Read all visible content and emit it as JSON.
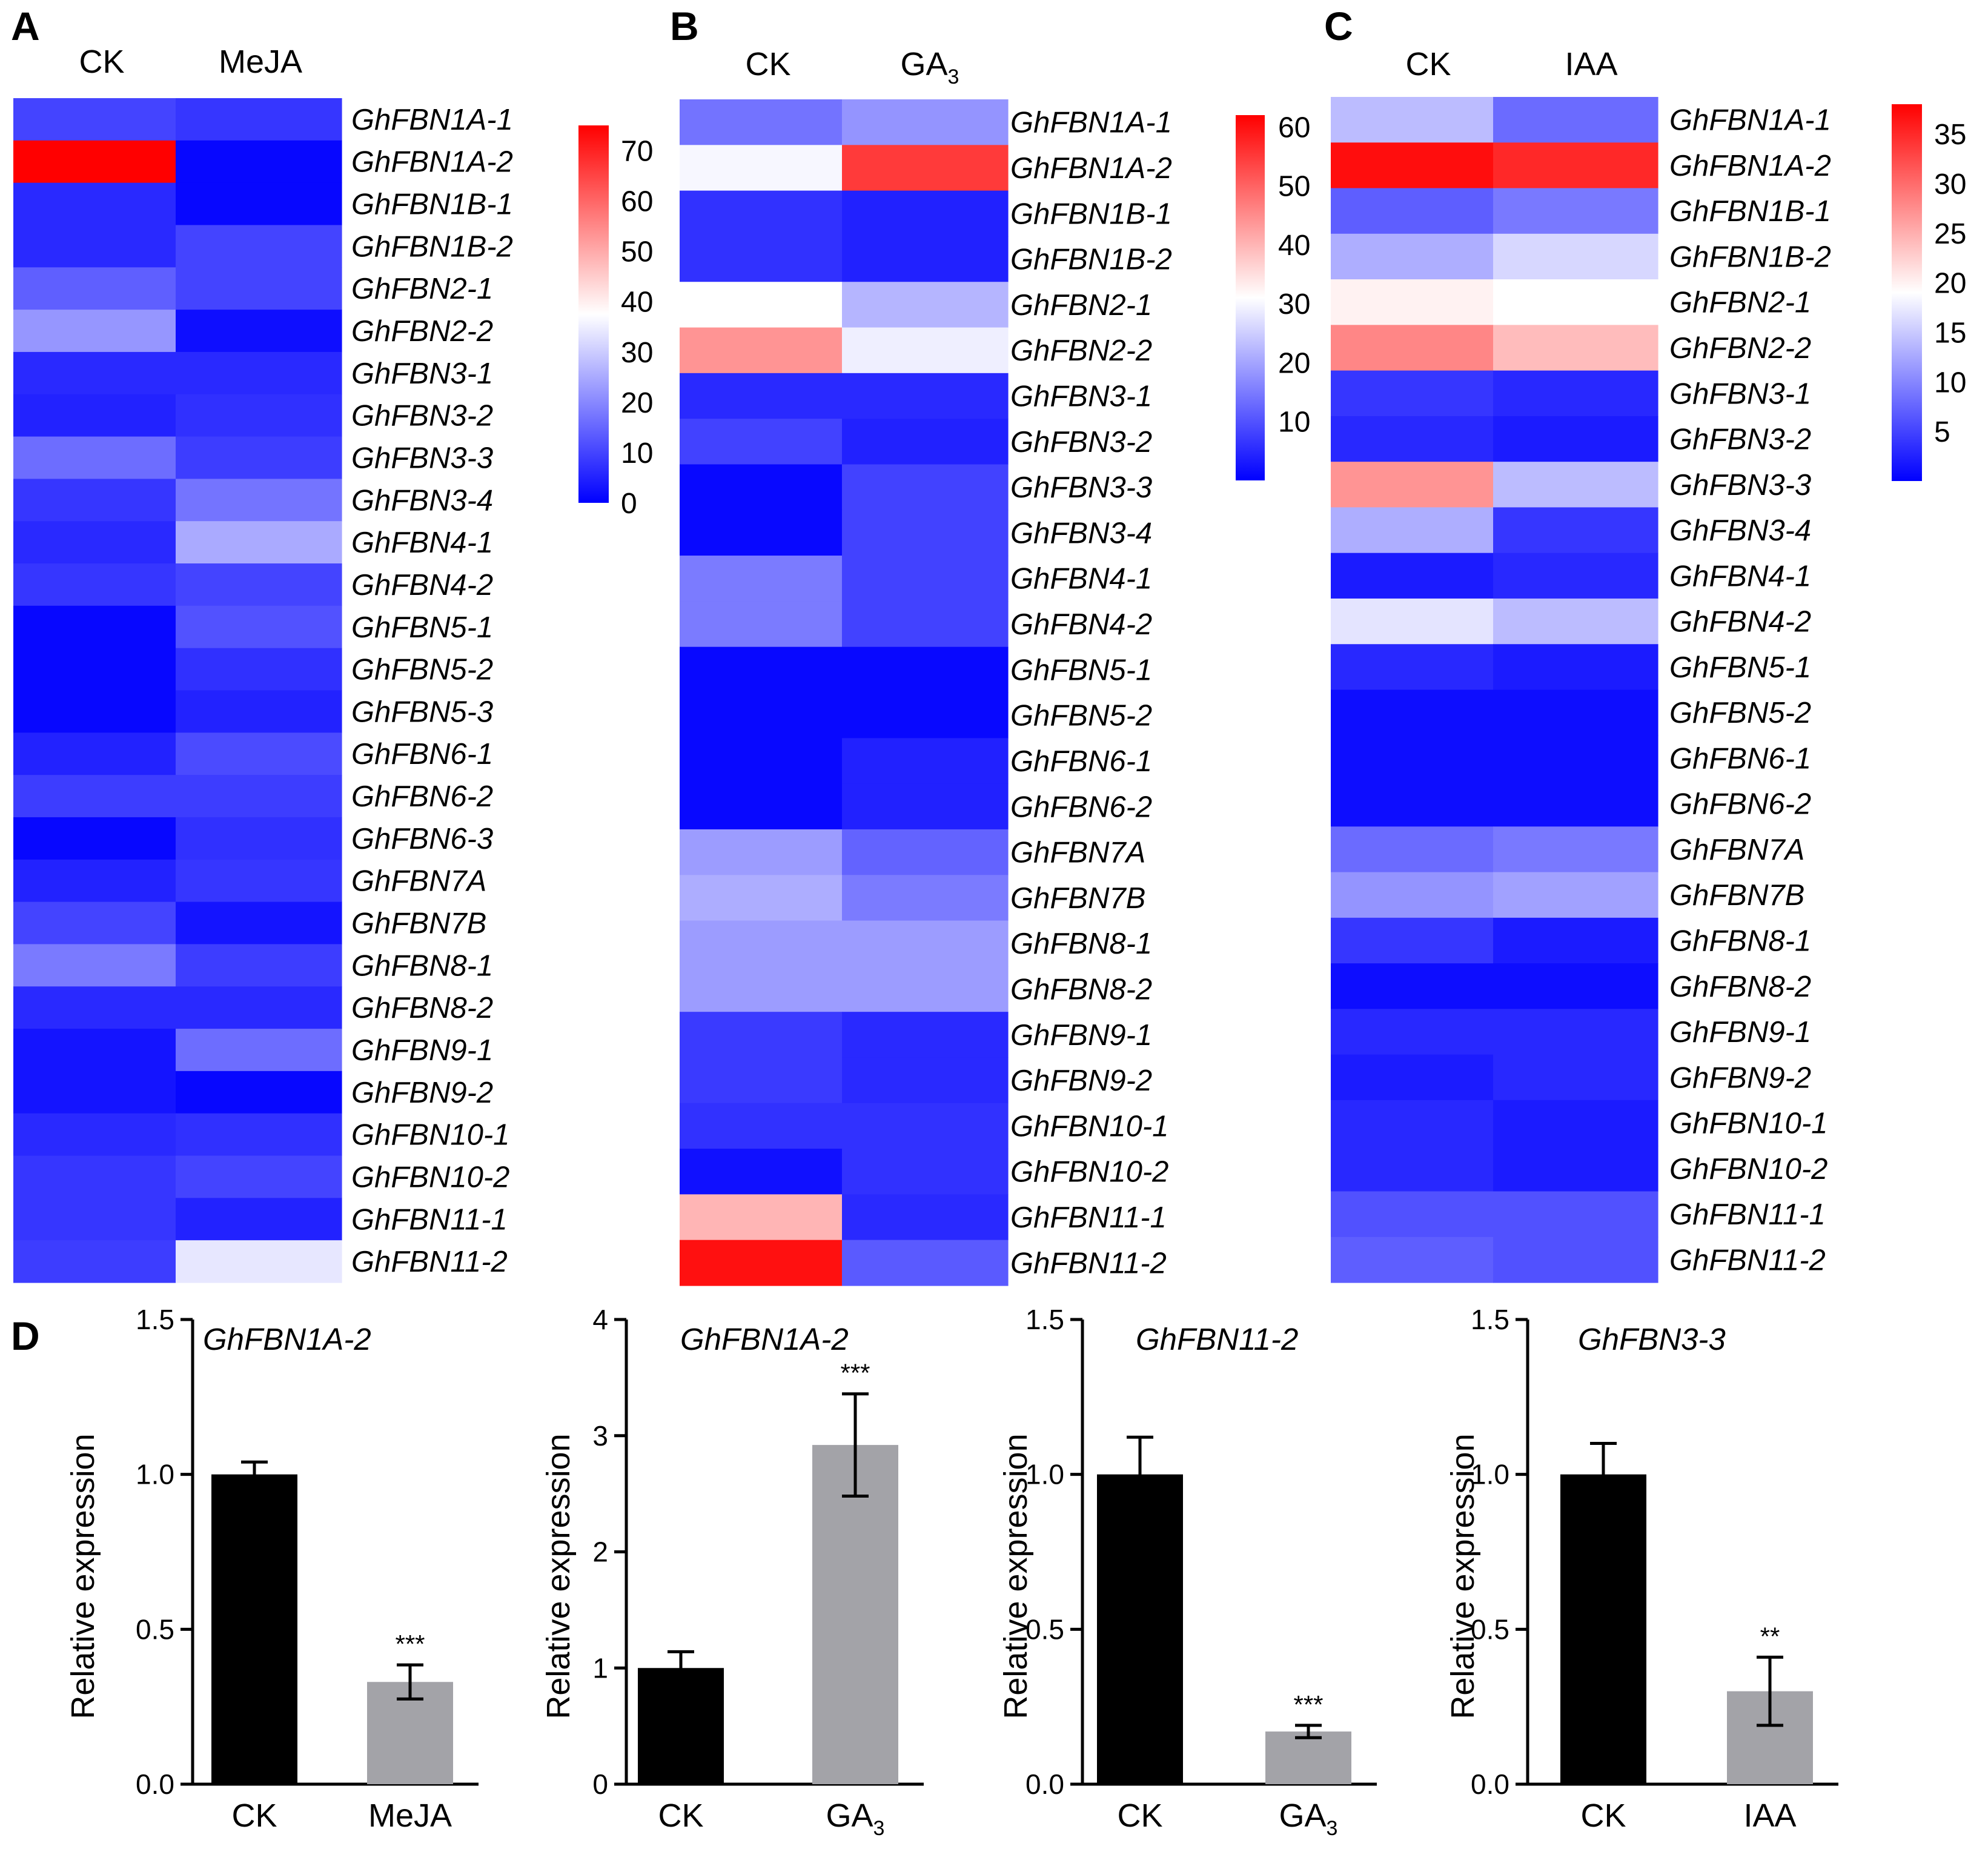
{
  "figure": {
    "panel_letters": [
      "A",
      "B",
      "C",
      "D"
    ]
  },
  "chart_data": [
    {
      "type": "heatmap",
      "panel": "A",
      "columns": [
        "CK",
        "MeJA"
      ],
      "rows": [
        "GhFBN1A-1",
        "GhFBN1A-2",
        "GhFBN1B-1",
        "GhFBN1B-2",
        "GhFBN2-1",
        "GhFBN2-2",
        "GhFBN3-1",
        "GhFBN3-2",
        "GhFBN3-3",
        "GhFBN3-4",
        "GhFBN4-1",
        "GhFBN4-2",
        "GhFBN5-1",
        "GhFBN5-2",
        "GhFBN5-3",
        "GhFBN6-1",
        "GhFBN6-2",
        "GhFBN6-3",
        "GhFBN7A",
        "GhFBN7B",
        "GhFBN8-1",
        "GhFBN8-2",
        "GhFBN9-1",
        "GhFBN9-2",
        "GhFBN10-1",
        "GhFBN10-2",
        "GhFBN11-1",
        "GhFBN11-2"
      ],
      "values": [
        [
          10,
          8
        ],
        [
          75,
          1
        ],
        [
          6,
          1
        ],
        [
          6,
          10
        ],
        [
          14,
          10
        ],
        [
          22,
          2
        ],
        [
          6,
          6
        ],
        [
          5,
          7
        ],
        [
          16,
          9
        ],
        [
          8,
          17
        ],
        [
          6,
          25
        ],
        [
          8,
          10
        ],
        [
          1,
          12
        ],
        [
          1,
          7
        ],
        [
          1,
          5
        ],
        [
          5,
          11
        ],
        [
          9,
          9
        ],
        [
          1,
          7
        ],
        [
          5,
          8
        ],
        [
          10,
          3
        ],
        [
          18,
          9
        ],
        [
          6,
          6
        ],
        [
          3,
          16
        ],
        [
          3,
          1
        ],
        [
          6,
          7
        ],
        [
          8,
          10
        ],
        [
          8,
          5
        ],
        [
          9,
          34
        ]
      ],
      "colorbar": {
        "min": 0,
        "max": 75,
        "ticks": [
          "70",
          "60",
          "50",
          "40",
          "30",
          "20",
          "10",
          "0"
        ],
        "tick_values": [
          70,
          60,
          50,
          40,
          30,
          20,
          10,
          0
        ],
        "colors": [
          "#0000ff",
          "#ffffff",
          "#ff0000"
        ]
      }
    },
    {
      "type": "heatmap",
      "panel": "B",
      "columns": [
        "CK",
        "GA3"
      ],
      "rows": [
        "GhFBN1A-1",
        "GhFBN1A-2",
        "GhFBN1B-1",
        "GhFBN1B-2",
        "GhFBN2-1",
        "GhFBN2-2",
        "GhFBN3-1",
        "GhFBN3-2",
        "GhFBN3-3",
        "GhFBN3-4",
        "GhFBN4-1",
        "GhFBN4-2",
        "GhFBN5-1",
        "GhFBN5-2",
        "GhFBN6-1",
        "GhFBN6-2",
        "GhFBN7A",
        "GhFBN7B",
        "GhFBN8-1",
        "GhFBN8-2",
        "GhFBN9-1",
        "GhFBN9-2",
        "GhFBN10-1",
        "GhFBN10-2",
        "GhFBN11-1",
        "GhFBN11-2"
      ],
      "values": [
        [
          14,
          18
        ],
        [
          30,
          55
        ],
        [
          6,
          4
        ],
        [
          6,
          4
        ],
        [
          31,
          22
        ],
        [
          44,
          29
        ],
        [
          5,
          5
        ],
        [
          8,
          4
        ],
        [
          1,
          8
        ],
        [
          1,
          8
        ],
        [
          15,
          8
        ],
        [
          15,
          8
        ],
        [
          1,
          1
        ],
        [
          1,
          1
        ],
        [
          1,
          4
        ],
        [
          1,
          4
        ],
        [
          19,
          12
        ],
        [
          21,
          15
        ],
        [
          19,
          19
        ],
        [
          19,
          19
        ],
        [
          7,
          5
        ],
        [
          7,
          5
        ],
        [
          6,
          6
        ],
        [
          2,
          6
        ],
        [
          40,
          5
        ],
        [
          60,
          11
        ]
      ],
      "colorbar": {
        "min": 0,
        "max": 62,
        "ticks": [
          "60",
          "50",
          "40",
          "30",
          "20",
          "10"
        ],
        "tick_values": [
          60,
          50,
          40,
          30,
          20,
          10
        ],
        "colors": [
          "#0000ff",
          "#ffffff",
          "#ff0000"
        ]
      }
    },
    {
      "type": "heatmap",
      "panel": "C",
      "columns": [
        "CK",
        "IAA"
      ],
      "rows": [
        "GhFBN1A-1",
        "GhFBN1A-2",
        "GhFBN1B-1",
        "GhFBN1B-2",
        "GhFBN2-1",
        "GhFBN2-2",
        "GhFBN3-1",
        "GhFBN3-2",
        "GhFBN3-3",
        "GhFBN3-4",
        "GhFBN4-1",
        "GhFBN4-2",
        "GhFBN5-1",
        "GhFBN5-2",
        "GhFBN6-1",
        "GhFBN6-2",
        "GhFBN7A",
        "GhFBN7B",
        "GhFBN8-1",
        "GhFBN8-2",
        "GhFBN9-1",
        "GhFBN9-2",
        "GhFBN10-1",
        "GhFBN10-2",
        "GhFBN11-1",
        "GhFBN11-2"
      ],
      "values": [
        [
          14,
          8
        ],
        [
          37,
          35
        ],
        [
          7,
          9
        ],
        [
          13,
          16
        ],
        [
          20,
          19
        ],
        [
          28,
          24
        ],
        [
          4,
          3
        ],
        [
          3,
          2
        ],
        [
          27,
          14
        ],
        [
          13,
          4
        ],
        [
          2,
          3
        ],
        [
          17,
          14
        ],
        [
          3,
          2
        ],
        [
          1,
          1
        ],
        [
          1,
          1
        ],
        [
          1,
          1
        ],
        [
          8,
          9
        ],
        [
          11,
          12
        ],
        [
          4,
          2
        ],
        [
          1,
          1
        ],
        [
          3,
          3
        ],
        [
          2,
          3
        ],
        [
          3,
          2
        ],
        [
          3,
          2
        ],
        [
          6,
          6
        ],
        [
          7,
          6
        ]
      ],
      "colorbar": {
        "min": 0,
        "max": 38,
        "ticks": [
          "35",
          "30",
          "25",
          "20",
          "15",
          "10",
          "5"
        ],
        "tick_values": [
          35,
          30,
          25,
          20,
          15,
          10,
          5
        ],
        "colors": [
          "#0000ff",
          "#ffffff",
          "#ff0000"
        ]
      }
    },
    {
      "type": "bar",
      "panel": "D",
      "title": "GhFBN1A-2",
      "categories": [
        "CK",
        "MeJA"
      ],
      "values": [
        1.0,
        0.33
      ],
      "errors": [
        0.04,
        0.055
      ],
      "significance": [
        "",
        "***"
      ],
      "ylabel": "Relative expression",
      "ylim": [
        0,
        1.5
      ],
      "yticks": [
        "0.0",
        "0.5",
        "1.0",
        "1.5"
      ],
      "ytick_values": [
        0,
        0.5,
        1.0,
        1.5
      ],
      "colors": [
        "#000000",
        "#a3a3a8"
      ]
    },
    {
      "type": "bar",
      "panel": "D",
      "title": "GhFBN1A-2",
      "categories": [
        "CK",
        "GA3"
      ],
      "values": [
        1.0,
        2.92
      ],
      "errors": [
        0.14,
        0.44
      ],
      "significance": [
        "",
        "***"
      ],
      "ylabel": "Relative expression",
      "ylim": [
        0,
        4
      ],
      "yticks": [
        "0",
        "1",
        "2",
        "3",
        "4"
      ],
      "ytick_values": [
        0,
        1,
        2,
        3,
        4
      ],
      "colors": [
        "#000000",
        "#a3a3a8"
      ]
    },
    {
      "type": "bar",
      "panel": "D",
      "title": "GhFBN11-2",
      "categories": [
        "CK",
        "GA3"
      ],
      "values": [
        1.0,
        0.17
      ],
      "errors": [
        0.12,
        0.02
      ],
      "significance": [
        "",
        "***"
      ],
      "ylabel": "Relative expression",
      "ylim": [
        0,
        1.5
      ],
      "yticks": [
        "0.0",
        "0.5",
        "1.0",
        "1.5"
      ],
      "ytick_values": [
        0,
        0.5,
        1.0,
        1.5
      ],
      "colors": [
        "#000000",
        "#a3a3a8"
      ]
    },
    {
      "type": "bar",
      "panel": "D",
      "title": "GhFBN3-3",
      "categories": [
        "CK",
        "IAA"
      ],
      "values": [
        1.0,
        0.3
      ],
      "errors": [
        0.1,
        0.11
      ],
      "significance": [
        "",
        "**"
      ],
      "ylabel": "Relative expression",
      "ylim": [
        0,
        1.5
      ],
      "yticks": [
        "0.0",
        "0.5",
        "1.0",
        "1.5"
      ],
      "ytick_values": [
        0,
        0.5,
        1.0,
        1.5
      ],
      "colors": [
        "#000000",
        "#a3a3a8"
      ]
    }
  ]
}
